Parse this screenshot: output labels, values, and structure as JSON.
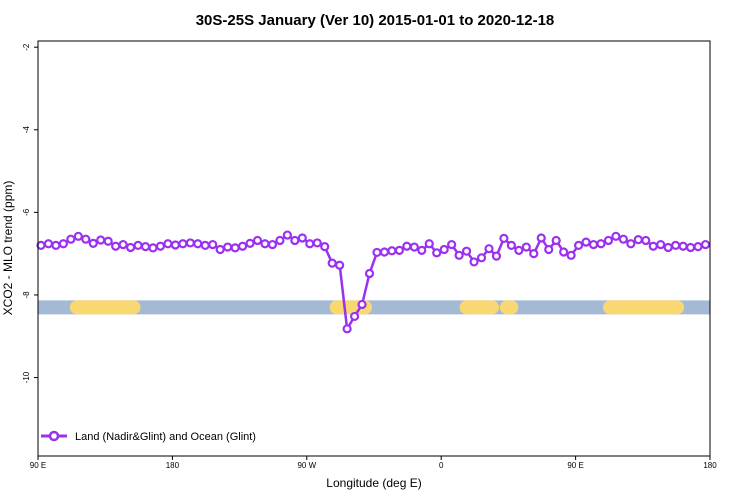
{
  "chart_data": {
    "type": "line",
    "title": "30S-25S January (Ver 10)   2015-01-01 to 2020-12-18",
    "xlabel": "Longitude (deg E)",
    "ylabel": "XCO2 - MLO trend (ppm)",
    "x_ticks": [
      {
        "value": 90,
        "label": "90 E"
      },
      {
        "value": 180,
        "label": "180"
      },
      {
        "value": 270,
        "label": "90 W"
      },
      {
        "value": 360,
        "label": "0"
      },
      {
        "value": 450,
        "label": "90 E"
      },
      {
        "value": 540,
        "label": "180"
      }
    ],
    "y_ticks": [
      {
        "value": -2,
        "label": "-2"
      },
      {
        "value": -4,
        "label": "-4"
      },
      {
        "value": -6,
        "label": "-6"
      },
      {
        "value": -8,
        "label": "-8"
      },
      {
        "value": -10,
        "label": "-10"
      }
    ],
    "xlim": [
      90,
      540
    ],
    "ylim": [
      -11.9,
      -1.85
    ],
    "grid": false,
    "legend_position": "bottom-left",
    "surface_strip": {
      "y": -8.3,
      "ocean_color": "#a3b9d4",
      "land_color": "#fad871",
      "land_segments": [
        [
          116,
          154
        ],
        [
          290,
          309
        ],
        [
          377,
          394
        ],
        [
          404,
          407
        ],
        [
          473,
          518
        ]
      ]
    },
    "series": [
      {
        "name": "Land (Nadir&Glint) and Ocean (Glint)",
        "color": "#9b30f0",
        "x": [
          92,
          97,
          102,
          107,
          112,
          117,
          122,
          127,
          132,
          137,
          142,
          147,
          152,
          157,
          162,
          167,
          172,
          177,
          182,
          187,
          192,
          197,
          202,
          207,
          212,
          217,
          222,
          227,
          232,
          237,
          242,
          247,
          252,
          257,
          262,
          267,
          272,
          277,
          282,
          287,
          292,
          297,
          302,
          307,
          312,
          317,
          322,
          327,
          332,
          337,
          342,
          347,
          352,
          357,
          362,
          367,
          372,
          377,
          382,
          387,
          392,
          397,
          402,
          407,
          412,
          417,
          422,
          427,
          432,
          437,
          442,
          447,
          452,
          457,
          462,
          467,
          472,
          477,
          482,
          487,
          492,
          497,
          502,
          507,
          512,
          517,
          522,
          527,
          532,
          537
        ],
        "y": [
          -6.8,
          -6.76,
          -6.8,
          -6.76,
          -6.65,
          -6.58,
          -6.65,
          -6.75,
          -6.67,
          -6.7,
          -6.82,
          -6.78,
          -6.85,
          -6.8,
          -6.83,
          -6.86,
          -6.82,
          -6.76,
          -6.79,
          -6.76,
          -6.74,
          -6.76,
          -6.8,
          -6.78,
          -6.9,
          -6.84,
          -6.86,
          -6.82,
          -6.75,
          -6.68,
          -6.76,
          -6.78,
          -6.68,
          -6.55,
          -6.68,
          -6.62,
          -6.76,
          -6.74,
          -6.83,
          -7.23,
          -7.28,
          -8.82,
          -8.52,
          -8.23,
          -7.48,
          -6.97,
          -6.96,
          -6.93,
          -6.92,
          -6.82,
          -6.84,
          -6.92,
          -6.76,
          -6.98,
          -6.9,
          -6.78,
          -7.04,
          -6.94,
          -7.2,
          -7.1,
          -6.88,
          -7.06,
          -6.63,
          -6.8,
          -6.92,
          -6.84,
          -7.0,
          -6.62,
          -6.9,
          -6.68,
          -6.96,
          -7.04,
          -6.8,
          -6.72,
          -6.78,
          -6.76,
          -6.68,
          -6.58,
          -6.65,
          -6.76,
          -6.66,
          -6.68,
          -6.82,
          -6.78,
          -6.85,
          -6.8,
          -6.82,
          -6.85,
          -6.83,
          -6.78
        ]
      }
    ]
  }
}
